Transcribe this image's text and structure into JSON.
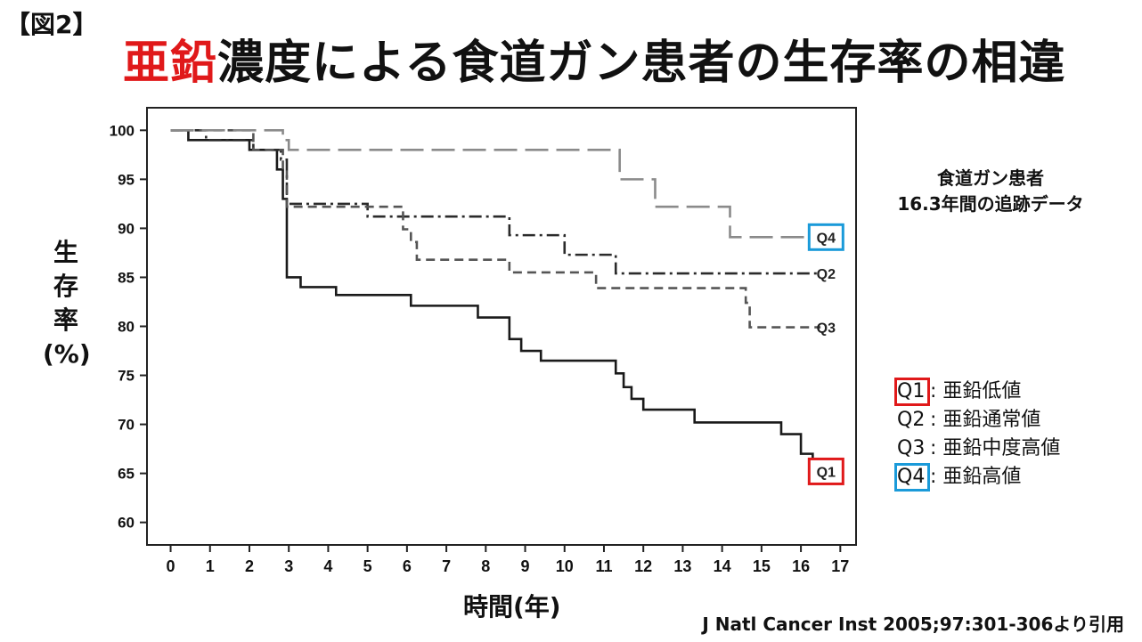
{
  "figure_label": "【図2】",
  "title": {
    "highlight": "亜鉛",
    "rest": "濃度による食道ガン患者の生存率の相違"
  },
  "ylabel_chars": [
    "生",
    "存",
    "率",
    "(%)"
  ],
  "xlabel": "時間(年)",
  "note_lines": [
    "食道ガン患者",
    "16.3年間の追跡データ"
  ],
  "legend": [
    {
      "q": "Q1",
      "desc": ": 亜鉛低値",
      "box": "red"
    },
    {
      "q": "Q2",
      "desc": ": 亜鉛通常値",
      "box": "none"
    },
    {
      "q": "Q3",
      "desc": ": 亜鉛中度高値",
      "box": "none"
    },
    {
      "q": "Q4",
      "desc": ": 亜鉛高値",
      "box": "blue"
    }
  ],
  "citation": "J Natl Cancer Inst 2005;97:301-306より引用",
  "colors": {
    "accent_red": "#e0191a",
    "accent_blue": "#1a9ad9"
  },
  "chart_data": {
    "type": "line",
    "step": true,
    "title": "",
    "xlabel": "時間(年)",
    "ylabel": "生存率(%)",
    "xlim": [
      -0.6,
      17.4
    ],
    "ylim": [
      57.7,
      102.3
    ],
    "xticks": [
      0,
      1,
      2,
      3,
      4,
      5,
      6,
      7,
      8,
      9,
      10,
      11,
      12,
      13,
      14,
      15,
      16,
      17
    ],
    "yticks": [
      60,
      65,
      70,
      75,
      80,
      85,
      90,
      95,
      100
    ],
    "grid": false,
    "series": [
      {
        "name": "Q1",
        "label_box": "red",
        "color": "#1a1a1a",
        "dash": "",
        "x": [
          0,
          0.45,
          2.0,
          2.7,
          2.85,
          2.95,
          3.3,
          4.2,
          6.1,
          7.8,
          8.6,
          8.9,
          9.4,
          11.3,
          11.5,
          11.7,
          12.0,
          13.3,
          15.5,
          16.0,
          16.3
        ],
        "y": [
          100,
          99,
          98,
          96,
          93,
          85,
          84,
          83.2,
          82.1,
          80.9,
          78.7,
          77.5,
          76.5,
          75.2,
          73.8,
          72.6,
          71.5,
          70.2,
          69,
          67,
          65.2
        ]
      },
      {
        "name": "Q2",
        "label_box": "none",
        "color": "#2b2b2b",
        "dash": "14 5 3 5",
        "x": [
          0,
          0.9,
          2.1,
          2.8,
          2.95,
          3.6,
          5.0,
          8.6,
          10.0,
          11.3,
          16.5
        ],
        "y": [
          100,
          99,
          98,
          97,
          92.5,
          92.5,
          91.2,
          89.3,
          87.3,
          85.4,
          85.4
        ]
      },
      {
        "name": "Q3",
        "label_box": "none",
        "color": "#555555",
        "dash": "10 6",
        "x": [
          0,
          2.1,
          2.85,
          2.95,
          5.9,
          6.1,
          6.25,
          8.6,
          10.8,
          14.6,
          14.7,
          16.5
        ],
        "y": [
          100,
          98,
          96,
          92.2,
          89.9,
          88.6,
          86.8,
          85.5,
          83.9,
          82.4,
          79.9,
          79.9
        ]
      },
      {
        "name": "Q4",
        "label_box": "blue",
        "color": "#8a8a8a",
        "dash": "26 9",
        "x": [
          0,
          2.85,
          3.0,
          11.4,
          12.3,
          14.2,
          16.5
        ],
        "y": [
          100,
          99,
          98,
          95,
          92.2,
          89.1,
          89.1
        ]
      }
    ]
  }
}
